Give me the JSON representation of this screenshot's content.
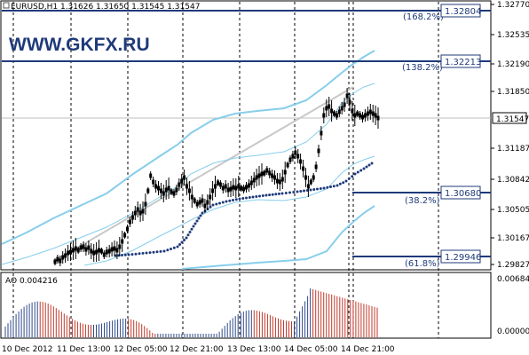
{
  "header": {
    "symbol_line": "EURUSD,H1  1.31626 1.31650 1.31545 1.31547",
    "watermark": "WWW.GKFX.RU"
  },
  "indicator": {
    "label": "AO 0.004216",
    "scale_top": "0.00684",
    "scale_bottom": "0.00000"
  },
  "price_axis": {
    "ticks": [
      "1.32770",
      "1.32535",
      "1.32190",
      "1.31850",
      "1.31520",
      "1.31187",
      "1.30842",
      "1.30505",
      "1.30167",
      "1.29827"
    ],
    "current_price": "1.31547",
    "level_labels": [
      "1.32804",
      "1.32213",
      "1.30680",
      "1.29946"
    ]
  },
  "fibo_levels": [
    {
      "pct": "(168.2%)",
      "price": "1.32804"
    },
    {
      "pct": "(138.2%)",
      "price": "1.32213"
    },
    {
      "pct": "(38.2%)",
      "price": "1.30680"
    },
    {
      "pct": "(61.8%)",
      "price": "1.29946"
    }
  ],
  "time_axis": {
    "labels": [
      "10 Dec 2012",
      "11 Dec 13:00",
      "12 Dec 05:00",
      "12 Dec 21:00",
      "13 Dec 13:00",
      "14 Dec 05:00",
      "14 Dec 21:00"
    ]
  },
  "colors": {
    "candle": "#000000",
    "bands": "#87CEEB",
    "trend": "#C0C0C0",
    "dotted_ma": "#1F3A7A",
    "fibo": "#1F3A7A",
    "ao_up": "#2E4A8A",
    "ao_down": "#C0392B"
  }
}
